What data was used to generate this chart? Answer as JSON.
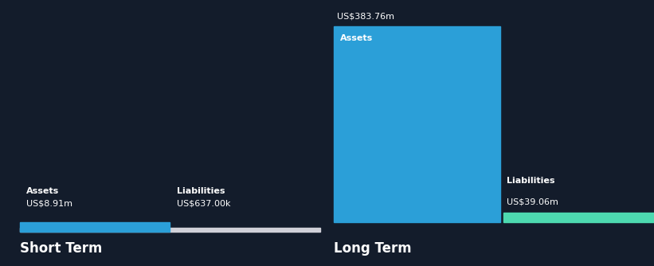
{
  "background_color": "#131c2b",
  "text_color": "#ffffff",
  "short_term": {
    "assets_label": "Assets",
    "assets_value": 8.91,
    "assets_value_label": "US$8.91m",
    "liabilities_label": "Liabilities",
    "liabilities_value": 0.637,
    "liabilities_value_label": "US$637.00k",
    "section_label": "Short Term",
    "bar_color_assets": "#2b9fd8",
    "bar_color_liabilities": "#d0d0d8"
  },
  "long_term": {
    "assets_label": "Assets",
    "assets_value": 383.76,
    "assets_value_label": "US$383.76m",
    "liabilities_label": "Liabilities",
    "liabilities_value": 39.06,
    "liabilities_value_label": "US$39.06m",
    "section_label": "Long Term",
    "bar_color_assets": "#2b9fd8",
    "bar_color_liabilities": "#4dd9b0"
  },
  "figsize": [
    8.21,
    3.34
  ],
  "dpi": 100
}
